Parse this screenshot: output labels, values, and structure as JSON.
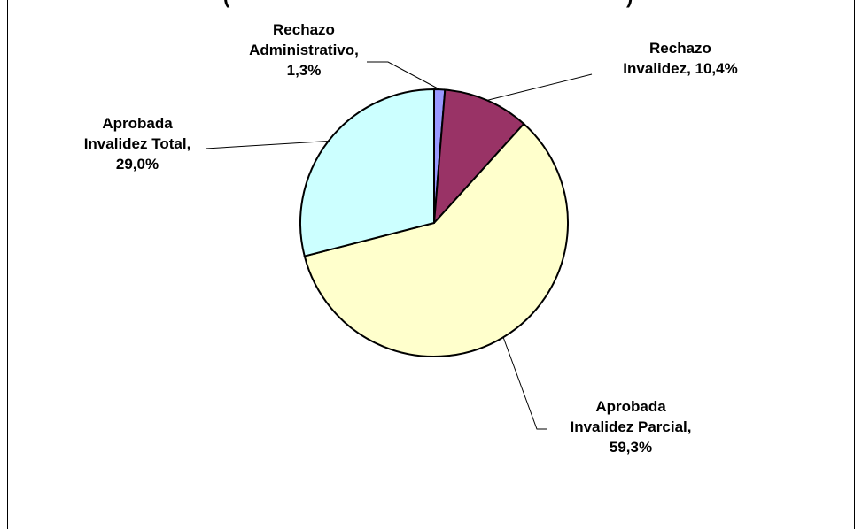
{
  "chart_data": {
    "type": "pie",
    "title": "(",
    "title_close": ")",
    "start_angle_deg": 0,
    "direction": "clockwise",
    "slices": [
      {
        "label_lines": [
          "Rechazo",
          "Administrativo,",
          "1,3%"
        ],
        "name": "Rechazo Administrativo",
        "value": 1.3,
        "color": "#9999ff"
      },
      {
        "label_lines": [
          "Rechazo",
          "Invalidez,  10,4%"
        ],
        "name": "Rechazo Invalidez",
        "value": 10.4,
        "color": "#993366"
      },
      {
        "label_lines": [
          "Aprobada",
          "Invalidez  Parcial,",
          "59,3%"
        ],
        "name": "Aprobada Invalidez Parcial",
        "value": 59.3,
        "color": "#ffffcc"
      },
      {
        "label_lines": [
          "Aprobada",
          "Invalidez  Total,",
          "29,0%"
        ],
        "name": "Aprobada Invalidez Total",
        "value": 29.0,
        "color": "#ccffff"
      }
    ],
    "legend": "none",
    "data_labels": "outside with leader lines"
  }
}
